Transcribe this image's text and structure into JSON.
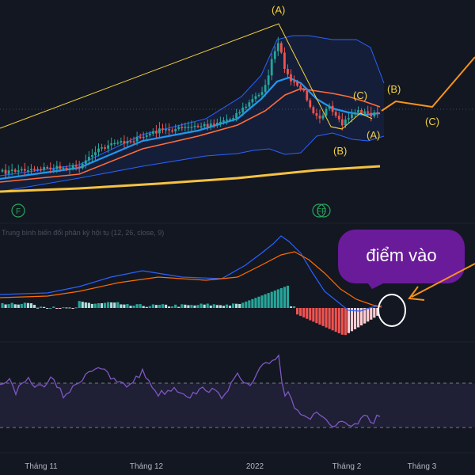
{
  "colors": {
    "background": "#131722",
    "candle_up": "#26a69a",
    "candle_down": "#ef5350",
    "wave": "#f5d340",
    "projection": "#f7931a",
    "bb": "#2962ff",
    "ma_fast": "#2196f3",
    "ma_slow": "#ff6d3a",
    "ma_long": "#f5c242",
    "macd_line": "#2962ff",
    "signal_line": "#ff6d00",
    "hist_pos": "#26a69a",
    "hist_pos_light": "#b2dfdb",
    "hist_neg": "#ef5350",
    "hist_neg_light": "#ffcdd2",
    "rsi": "#7e57c2",
    "callout": "#6a1b9a"
  },
  "chart_data": [
    {
      "type": "candlestick",
      "name": "price",
      "waves": [
        {
          "label": "(A)"
        },
        {
          "label": "(B)"
        },
        {
          "label": "(C)"
        },
        {
          "label": "(A)"
        },
        {
          "label": "(B)"
        },
        {
          "label": "(C)"
        }
      ],
      "markers": [
        "F",
        "F",
        "F"
      ]
    },
    {
      "type": "line",
      "name": "macd",
      "title": "Trung bình biến đổi phân kỳ hội tụ (12, 26, close, 9)"
    },
    {
      "type": "line",
      "name": "rsi"
    }
  ],
  "x_axis": {
    "ticks": [
      "Tháng 11",
      "Tháng 12",
      "2022",
      "Tháng 2",
      "Tháng 3"
    ]
  },
  "callout": {
    "text": "điểm vào"
  }
}
